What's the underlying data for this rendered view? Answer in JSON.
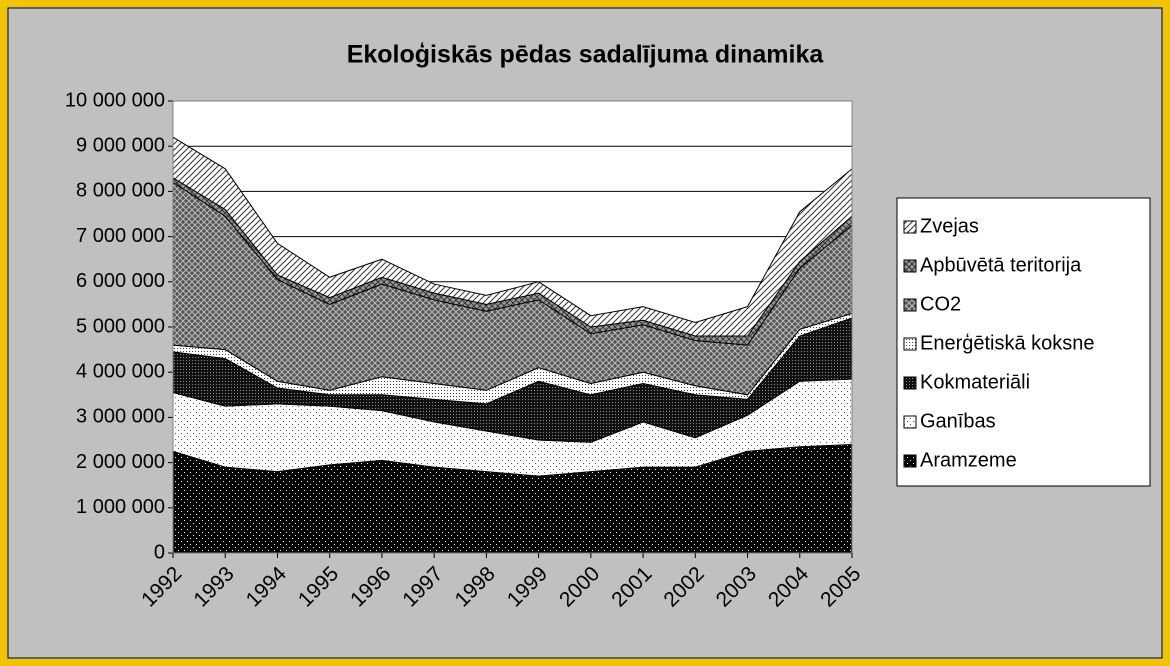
{
  "chart_data": {
    "type": "stacked-area",
    "title": "Ekoloģiskās pēdas sadalījuma dinamika",
    "categories": [
      "1992",
      "1993",
      "1994",
      "1995",
      "1996",
      "1997",
      "1998",
      "1999",
      "2000",
      "2001",
      "2002",
      "2003",
      "2004",
      "2005"
    ],
    "ylim": [
      0,
      10000000
    ],
    "yticks": [
      {
        "value": 0,
        "label": "0"
      },
      {
        "value": 1000000,
        "label": "1 000 000"
      },
      {
        "value": 2000000,
        "label": "2 000 000"
      },
      {
        "value": 3000000,
        "label": "3 000 000"
      },
      {
        "value": 4000000,
        "label": "4 000 000"
      },
      {
        "value": 5000000,
        "label": "5 000 000"
      },
      {
        "value": 6000000,
        "label": "6 000 000"
      },
      {
        "value": 7000000,
        "label": "7 000 000"
      },
      {
        "value": 8000000,
        "label": "8 000 000"
      },
      {
        "value": 9000000,
        "label": "9 000 000"
      },
      {
        "value": 10000000,
        "label": "10 000 000"
      }
    ],
    "grid": true,
    "legend": "right",
    "series": [
      {
        "name": "Aramzeme",
        "color": "#000000",
        "pattern": "dots",
        "pattern_color": "#ffffff",
        "values": [
          2250000,
          1900000,
          1800000,
          1950000,
          2050000,
          1900000,
          1800000,
          1700000,
          1800000,
          1900000,
          1900000,
          2250000,
          2350000,
          2400000
        ]
      },
      {
        "name": "Ganības",
        "color": "#ffffff",
        "pattern": "dots",
        "pattern_color": "#555555",
        "values": [
          1300000,
          1350000,
          1500000,
          1300000,
          1100000,
          1000000,
          900000,
          800000,
          650000,
          1000000,
          650000,
          800000,
          1450000,
          1450000
        ]
      },
      {
        "name": "Kokmateriāli",
        "color": "#111111",
        "pattern": "grid-dots",
        "pattern_color": "#888888",
        "values": [
          900000,
          1050000,
          350000,
          250000,
          350000,
          500000,
          600000,
          1300000,
          1050000,
          850000,
          950000,
          350000,
          1000000,
          1350000
        ]
      },
      {
        "name": "Enerģētiskā koksne",
        "color": "#ffffff",
        "pattern": "grid-dots",
        "pattern_color": "#444444",
        "values": [
          150000,
          200000,
          150000,
          100000,
          400000,
          350000,
          300000,
          300000,
          250000,
          250000,
          200000,
          100000,
          150000,
          100000
        ]
      },
      {
        "name": "CO2",
        "color": "#555555",
        "pattern": "cross",
        "pattern_color": "#bbbbbb",
        "values": [
          3600000,
          2950000,
          2250000,
          1900000,
          2050000,
          1850000,
          1750000,
          1500000,
          1100000,
          1050000,
          1000000,
          1100000,
          1350000,
          1950000
        ]
      },
      {
        "name": "Apbūvētā teritorija",
        "color": "#999999",
        "pattern": "cross",
        "pattern_color": "#333333",
        "values": [
          100000,
          150000,
          100000,
          150000,
          150000,
          150000,
          150000,
          150000,
          150000,
          100000,
          100000,
          200000,
          150000,
          200000
        ]
      },
      {
        "name": "Zvejas",
        "color": "#ffffff",
        "pattern": "diagonal",
        "pattern_color": "#333333",
        "values": [
          900000,
          900000,
          700000,
          450000,
          400000,
          200000,
          200000,
          250000,
          250000,
          300000,
          300000,
          650000,
          1100000,
          1050000
        ]
      }
    ]
  }
}
